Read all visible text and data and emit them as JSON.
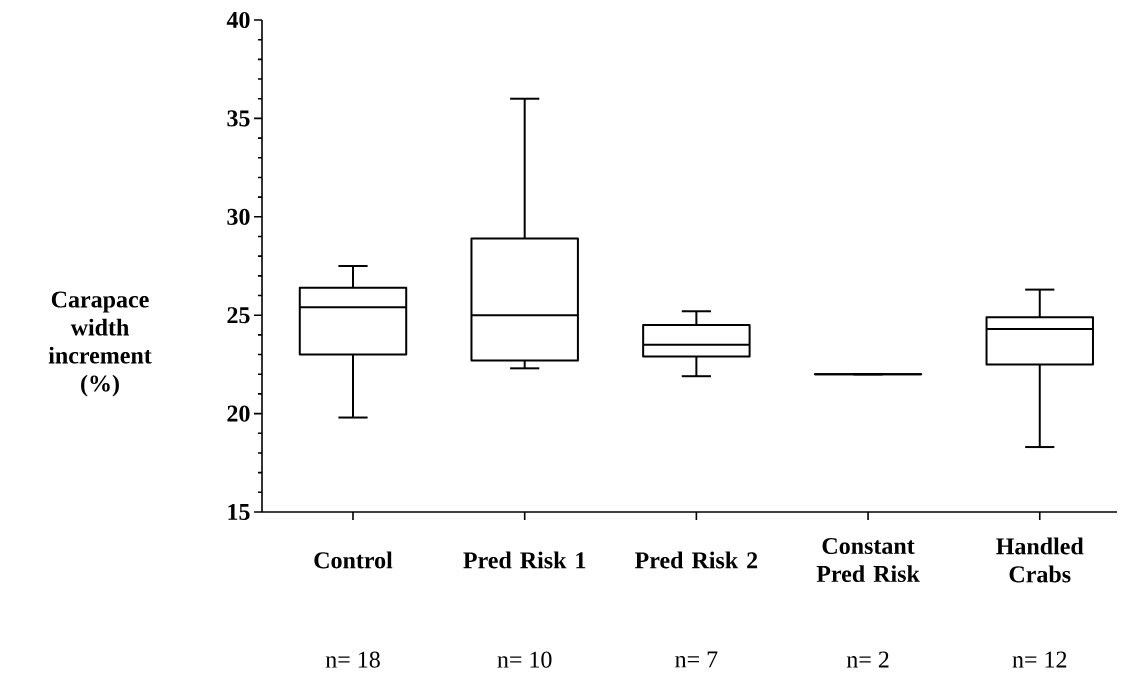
{
  "chart_data": {
    "type": "box",
    "ylabel": "Carapace width increment (%)",
    "categories": [
      "Control",
      "Pred Risk 1",
      "Pred Risk 2",
      "Constant Pred Risk",
      "Handled Crabs"
    ],
    "boxes": [
      {
        "low": 19.8,
        "q1": 23.0,
        "median": 25.4,
        "q3": 26.4,
        "high": 27.5
      },
      {
        "low": 22.3,
        "q1": 22.7,
        "median": 25.0,
        "q3": 28.9,
        "high": 36.0
      },
      {
        "low": 21.9,
        "q1": 22.9,
        "median": 23.5,
        "q3": 24.5,
        "high": 25.2
      },
      {
        "low": 22.0,
        "q1": 22.0,
        "median": 22.0,
        "q3": 22.0,
        "high": 22.0
      },
      {
        "low": 18.3,
        "q1": 22.5,
        "median": 24.3,
        "q3": 24.9,
        "high": 26.3
      }
    ],
    "ylim": [
      15,
      40
    ],
    "yticks": [
      15,
      {
        "value": 16,
        "label": null
      },
      {
        "value": 17,
        "label": null
      },
      {
        "value": 18,
        "label": null
      },
      {
        "value": 19,
        "label": null
      },
      20,
      {
        "value": 21,
        "label": null
      },
      {
        "value": 22,
        "label": null
      },
      {
        "value": 23,
        "label": null
      },
      {
        "value": 24,
        "label": null
      },
      25,
      {
        "value": 26,
        "label": null
      },
      {
        "value": 27,
        "label": null
      },
      {
        "value": 28,
        "label": null
      },
      {
        "value": 29,
        "label": null
      },
      30,
      {
        "value": 31,
        "label": null
      },
      {
        "value": 32,
        "label": null
      },
      {
        "value": 33,
        "label": null
      },
      {
        "value": 34,
        "label": null
      },
      35,
      {
        "value": 36,
        "label": null
      },
      {
        "value": 37,
        "label": null
      },
      {
        "value": 38,
        "label": null
      },
      {
        "value": 39,
        "label": null
      },
      40
    ],
    "annotations": [
      "n= 18",
      "n= 10",
      "n= 7",
      "n= 2",
      "n= 12"
    ]
  }
}
